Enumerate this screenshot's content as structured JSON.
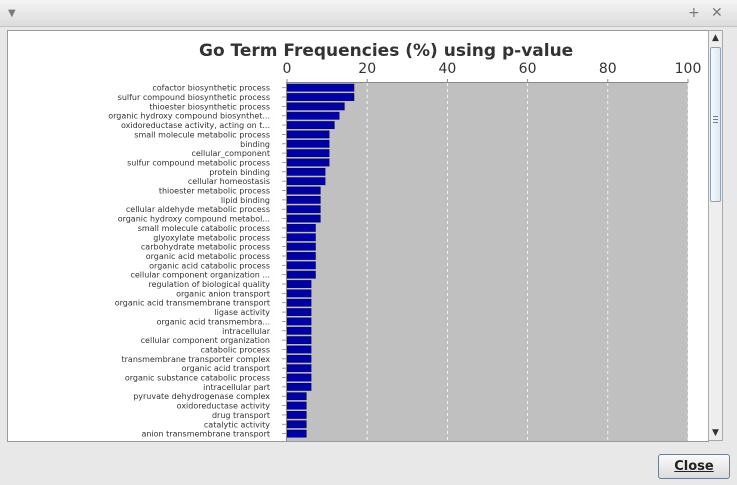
{
  "window": {
    "menu_icon": "chevron-down-icon",
    "maximize_label": "+",
    "close_label": "✕"
  },
  "close_button": {
    "label": "Close"
  },
  "colors": {
    "bar": "#0000a8",
    "plot_bg": "#c0c0c0",
    "gridline": "#ffffff"
  },
  "chart_data": {
    "type": "bar",
    "orientation": "horizontal",
    "title": "Go Term Frequencies (%) using p-value",
    "xlabel": "",
    "ylabel": "",
    "xlim": [
      0,
      100
    ],
    "xticks": [
      "0",
      "20",
      "40",
      "60",
      "80",
      "100"
    ],
    "grid": true,
    "categories": [
      "cofactor biosynthetic process",
      "sulfur compound biosynthetic process",
      "thioester biosynthetic process",
      "organic hydroxy compound biosynthet...",
      "oxidoreductase activity, acting on t...",
      "small molecule metabolic process",
      "binding",
      "cellular_component",
      "sulfur compound metabolic process",
      "protein binding",
      "cellular homeostasis",
      "thioester metabolic process",
      "lipid binding",
      "cellular aldehyde metabolic process",
      "organic hydroxy compound metabol...",
      "small molecule catabolic process",
      "glyoxylate metabolic process",
      "carbohydrate metabolic process",
      "organic acid metabolic process",
      "organic acid catabolic process",
      "cellular component organization ...",
      "regulation of biological quality",
      "organic anion transport",
      "organic acid transmembrane transport",
      "ligase activity",
      "organic acid transmembra...",
      "intracellular",
      "cellular component organization",
      "catabolic process",
      "transmembrane transporter complex",
      "organic acid transport",
      "organic substance catabolic process",
      "intracellular part",
      "pyruvate dehydrogenase complex",
      "oxidoreductase activity",
      "drug transport",
      "catalytic activity",
      "anion transmembrane transport"
    ],
    "values": [
      16.7,
      16.7,
      14.3,
      13.0,
      11.8,
      10.5,
      10.5,
      10.5,
      10.5,
      9.5,
      9.5,
      8.3,
      8.3,
      8.3,
      8.3,
      7.1,
      7.1,
      7.1,
      7.1,
      7.1,
      7.1,
      6.0,
      6.0,
      6.0,
      6.0,
      6.0,
      6.0,
      6.0,
      6.0,
      6.0,
      6.0,
      6.0,
      6.0,
      4.8,
      4.8,
      4.8,
      4.8,
      4.8
    ]
  }
}
